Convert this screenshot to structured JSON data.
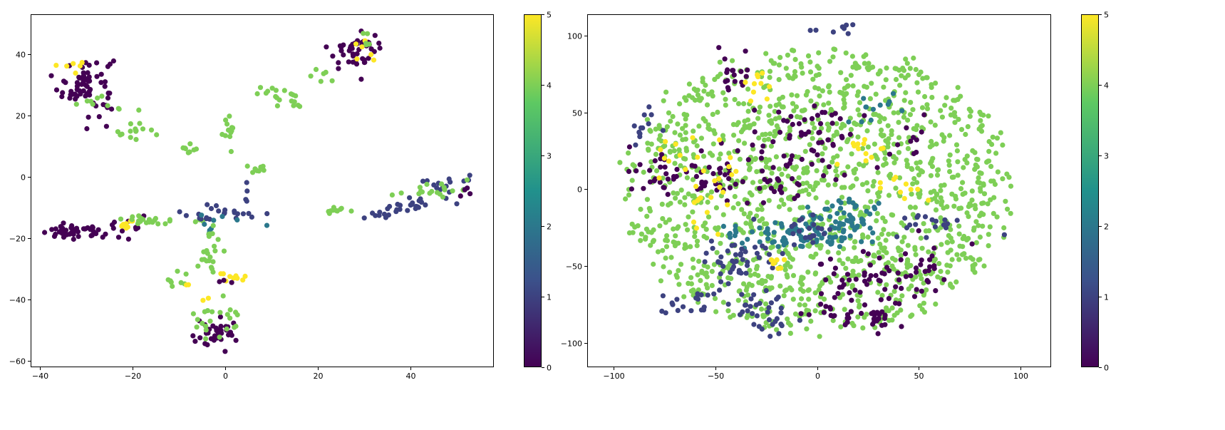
{
  "colormap": {
    "name": "viridis",
    "stops": [
      "#440154",
      "#3b528b",
      "#21918c",
      "#5ec962",
      "#fde725"
    ],
    "range": [
      0,
      5
    ]
  },
  "chart_data": [
    {
      "type": "scatter",
      "title": "",
      "xlabel": "",
      "ylabel": "",
      "xlim": [
        -42,
        58
      ],
      "ylim": [
        -62,
        53
      ],
      "xticks": [
        -40,
        -20,
        0,
        20,
        40
      ],
      "yticks": [
        -60,
        -40,
        -20,
        0,
        20,
        40
      ],
      "colorbar": {
        "ticks": [
          0,
          1,
          2,
          3,
          4,
          5
        ],
        "range": [
          0,
          5
        ]
      },
      "grid": false,
      "clusters": [
        {
          "x": -30,
          "y": 30,
          "sx": 3,
          "sy": 5,
          "n": 70,
          "c": 0
        },
        {
          "x": -33,
          "y": 36,
          "sx": 1,
          "sy": 1,
          "n": 6,
          "c": 5
        },
        {
          "x": -26,
          "y": 25,
          "sx": 3,
          "sy": 2,
          "n": 10,
          "c": 4
        },
        {
          "x": -20,
          "y": 15,
          "sx": 2,
          "sy": 1.5,
          "n": 14,
          "c": 4
        },
        {
          "x": 28,
          "y": 41,
          "sx": 3,
          "sy": 3,
          "n": 45,
          "c": 0
        },
        {
          "x": 30,
          "y": 41,
          "sx": 1.5,
          "sy": 1.5,
          "n": 6,
          "c": 5
        },
        {
          "x": 30,
          "y": 44,
          "sx": 1,
          "sy": 1.5,
          "n": 5,
          "c": 4
        },
        {
          "x": 21,
          "y": 33,
          "sx": 1.5,
          "sy": 1.5,
          "n": 6,
          "c": 4
        },
        {
          "x": 11,
          "y": 27,
          "sx": 2,
          "sy": 1.5,
          "n": 14,
          "c": 4
        },
        {
          "x": 16,
          "y": 25,
          "sx": 1.5,
          "sy": 1,
          "n": 5,
          "c": 4
        },
        {
          "x": 1,
          "y": 14,
          "sx": 0.8,
          "sy": 2.5,
          "n": 12,
          "c": 4
        },
        {
          "x": -7,
          "y": 9,
          "sx": 1.5,
          "sy": 1,
          "n": 8,
          "c": 4
        },
        {
          "x": 7,
          "y": 2,
          "sx": 1.2,
          "sy": 1,
          "n": 8,
          "c": 4
        },
        {
          "x": 5,
          "y": -5,
          "sx": 1,
          "sy": 2,
          "n": 4,
          "c": 1
        },
        {
          "x": -33,
          "y": -18,
          "sx": 3.5,
          "sy": 1,
          "n": 45,
          "c": 0
        },
        {
          "x": -21,
          "y": -17,
          "sx": 2,
          "sy": 2,
          "n": 12,
          "c": 0
        },
        {
          "x": -21,
          "y": -15,
          "sx": 1.2,
          "sy": 1.5,
          "n": 10,
          "c": 5
        },
        {
          "x": -14,
          "y": -14,
          "sx": 4,
          "sy": 0.8,
          "n": 22,
          "c": 4
        },
        {
          "x": -6,
          "y": -13,
          "sx": 2,
          "sy": 0.6,
          "n": 8,
          "c": 1
        },
        {
          "x": 1,
          "y": -11,
          "sx": 4,
          "sy": 1,
          "n": 16,
          "c": 1
        },
        {
          "x": 0,
          "y": -14,
          "sx": 3,
          "sy": 1,
          "n": 5,
          "c": 2
        },
        {
          "x": -3,
          "y": -17,
          "sx": 1.5,
          "sy": 1,
          "n": 4,
          "c": 2
        },
        {
          "x": -3,
          "y": -24,
          "sx": 1,
          "sy": 4,
          "n": 22,
          "c": 4
        },
        {
          "x": 1.5,
          "y": -32.5,
          "sx": 1.5,
          "sy": 0.8,
          "n": 12,
          "c": 5
        },
        {
          "x": 0,
          "y": -34,
          "sx": 1,
          "sy": 0.5,
          "n": 3,
          "c": 0
        },
        {
          "x": -11,
          "y": -34,
          "sx": 1.5,
          "sy": 1.5,
          "n": 8,
          "c": 4
        },
        {
          "x": -9,
          "y": -35,
          "sx": 0.5,
          "sy": 0.5,
          "n": 2,
          "c": 5
        },
        {
          "x": -4,
          "y": -40,
          "sx": 0.5,
          "sy": 0.5,
          "n": 2,
          "c": 5
        },
        {
          "x": -2,
          "y": -52,
          "sx": 3,
          "sy": 2.5,
          "n": 35,
          "c": 0
        },
        {
          "x": -1,
          "y": -46,
          "sx": 3,
          "sy": 3,
          "n": 22,
          "c": 4
        },
        {
          "x": 24,
          "y": -11,
          "sx": 1.2,
          "sy": 0.8,
          "n": 10,
          "c": 4
        },
        {
          "x": 33,
          "y": -12,
          "sx": 3,
          "sy": 1.5,
          "n": 12,
          "c": 1
        },
        {
          "x": 40,
          "y": -9,
          "sx": 4,
          "sy": 1.5,
          "n": 18,
          "c": 1
        },
        {
          "x": 49,
          "y": -2,
          "sx": 3,
          "sy": 1.5,
          "n": 16,
          "c": 1
        },
        {
          "x": 42,
          "y": -5,
          "sx": 4,
          "sy": 1.5,
          "n": 10,
          "c": 4
        },
        {
          "x": 47,
          "y": -3,
          "sx": 3,
          "sy": 1.5,
          "n": 8,
          "c": 4
        },
        {
          "x": 52,
          "y": -4,
          "sx": 1,
          "sy": 1,
          "n": 4,
          "c": 0
        }
      ]
    },
    {
      "type": "scatter",
      "title": "",
      "xlabel": "",
      "ylabel": "",
      "xlim": [
        -113,
        115
      ],
      "ylim": [
        -116,
        114
      ],
      "xticks": [
        -100,
        -50,
        0,
        50,
        100
      ],
      "yticks": [
        -100,
        -50,
        0,
        50,
        100
      ],
      "colorbar": {
        "ticks": [
          0,
          1,
          2,
          3,
          4,
          5
        ],
        "range": [
          0,
          5
        ]
      },
      "grid": false,
      "field": {
        "r": 95,
        "n": 1400,
        "c": 4
      },
      "clusters": [
        {
          "x": -10,
          "y": -28,
          "sx": 12,
          "sy": 6,
          "n": 70,
          "c": 2
        },
        {
          "x": 15,
          "y": -22,
          "sx": 10,
          "sy": 8,
          "n": 55,
          "c": 2
        },
        {
          "x": -40,
          "y": -45,
          "sx": 8,
          "sy": 10,
          "n": 45,
          "c": 1
        },
        {
          "x": -65,
          "y": -72,
          "sx": 8,
          "sy": 5,
          "n": 20,
          "c": 1
        },
        {
          "x": -28,
          "y": -75,
          "sx": 8,
          "sy": 6,
          "n": 22,
          "c": 1
        },
        {
          "x": -85,
          "y": 40,
          "sx": 3,
          "sy": 8,
          "n": 12,
          "c": 1
        },
        {
          "x": 60,
          "y": -22,
          "sx": 10,
          "sy": 4,
          "n": 18,
          "c": 1
        },
        {
          "x": -22,
          "y": -92,
          "sx": 6,
          "sy": 4,
          "n": 10,
          "c": 1
        },
        {
          "x": 10,
          "y": 105,
          "sx": 6,
          "sy": 2,
          "n": 8,
          "c": 1
        },
        {
          "x": -80,
          "y": 10,
          "sx": 6,
          "sy": 8,
          "n": 25,
          "c": 0
        },
        {
          "x": -50,
          "y": 10,
          "sx": 10,
          "sy": 10,
          "n": 40,
          "c": 0
        },
        {
          "x": 0,
          "y": 35,
          "sx": 12,
          "sy": 12,
          "n": 50,
          "c": 0
        },
        {
          "x": -15,
          "y": 10,
          "sx": 8,
          "sy": 8,
          "n": 25,
          "c": 0
        },
        {
          "x": 25,
          "y": -60,
          "sx": 18,
          "sy": 12,
          "n": 55,
          "c": 0
        },
        {
          "x": 10,
          "y": -80,
          "sx": 12,
          "sy": 6,
          "n": 20,
          "c": 0
        },
        {
          "x": 50,
          "y": -50,
          "sx": 8,
          "sy": 8,
          "n": 20,
          "c": 0
        },
        {
          "x": -40,
          "y": 75,
          "sx": 5,
          "sy": 8,
          "n": 18,
          "c": 0
        },
        {
          "x": 30,
          "y": -85,
          "sx": 5,
          "sy": 4,
          "n": 12,
          "c": 0
        },
        {
          "x": 45,
          "y": 30,
          "sx": 6,
          "sy": 6,
          "n": 10,
          "c": 0
        },
        {
          "x": -55,
          "y": 5,
          "sx": 10,
          "sy": 12,
          "n": 25,
          "c": 5
        },
        {
          "x": -30,
          "y": 70,
          "sx": 4,
          "sy": 6,
          "n": 10,
          "c": 5
        },
        {
          "x": -20,
          "y": -48,
          "sx": 4,
          "sy": 3,
          "n": 8,
          "c": 5
        },
        {
          "x": 40,
          "y": 0,
          "sx": 6,
          "sy": 4,
          "n": 10,
          "c": 5
        },
        {
          "x": 20,
          "y": 25,
          "sx": 6,
          "sy": 6,
          "n": 12,
          "c": 5
        },
        {
          "x": -70,
          "y": 25,
          "sx": 4,
          "sy": 4,
          "n": 6,
          "c": 5
        },
        {
          "x": -45,
          "y": -28,
          "sx": 3,
          "sy": 3,
          "n": 6,
          "c": 2
        },
        {
          "x": 30,
          "y": 55,
          "sx": 8,
          "sy": 6,
          "n": 12,
          "c": 2
        },
        {
          "x": -5,
          "y": -25,
          "sx": 5,
          "sy": 5,
          "n": 20,
          "c": 1
        }
      ]
    }
  ]
}
